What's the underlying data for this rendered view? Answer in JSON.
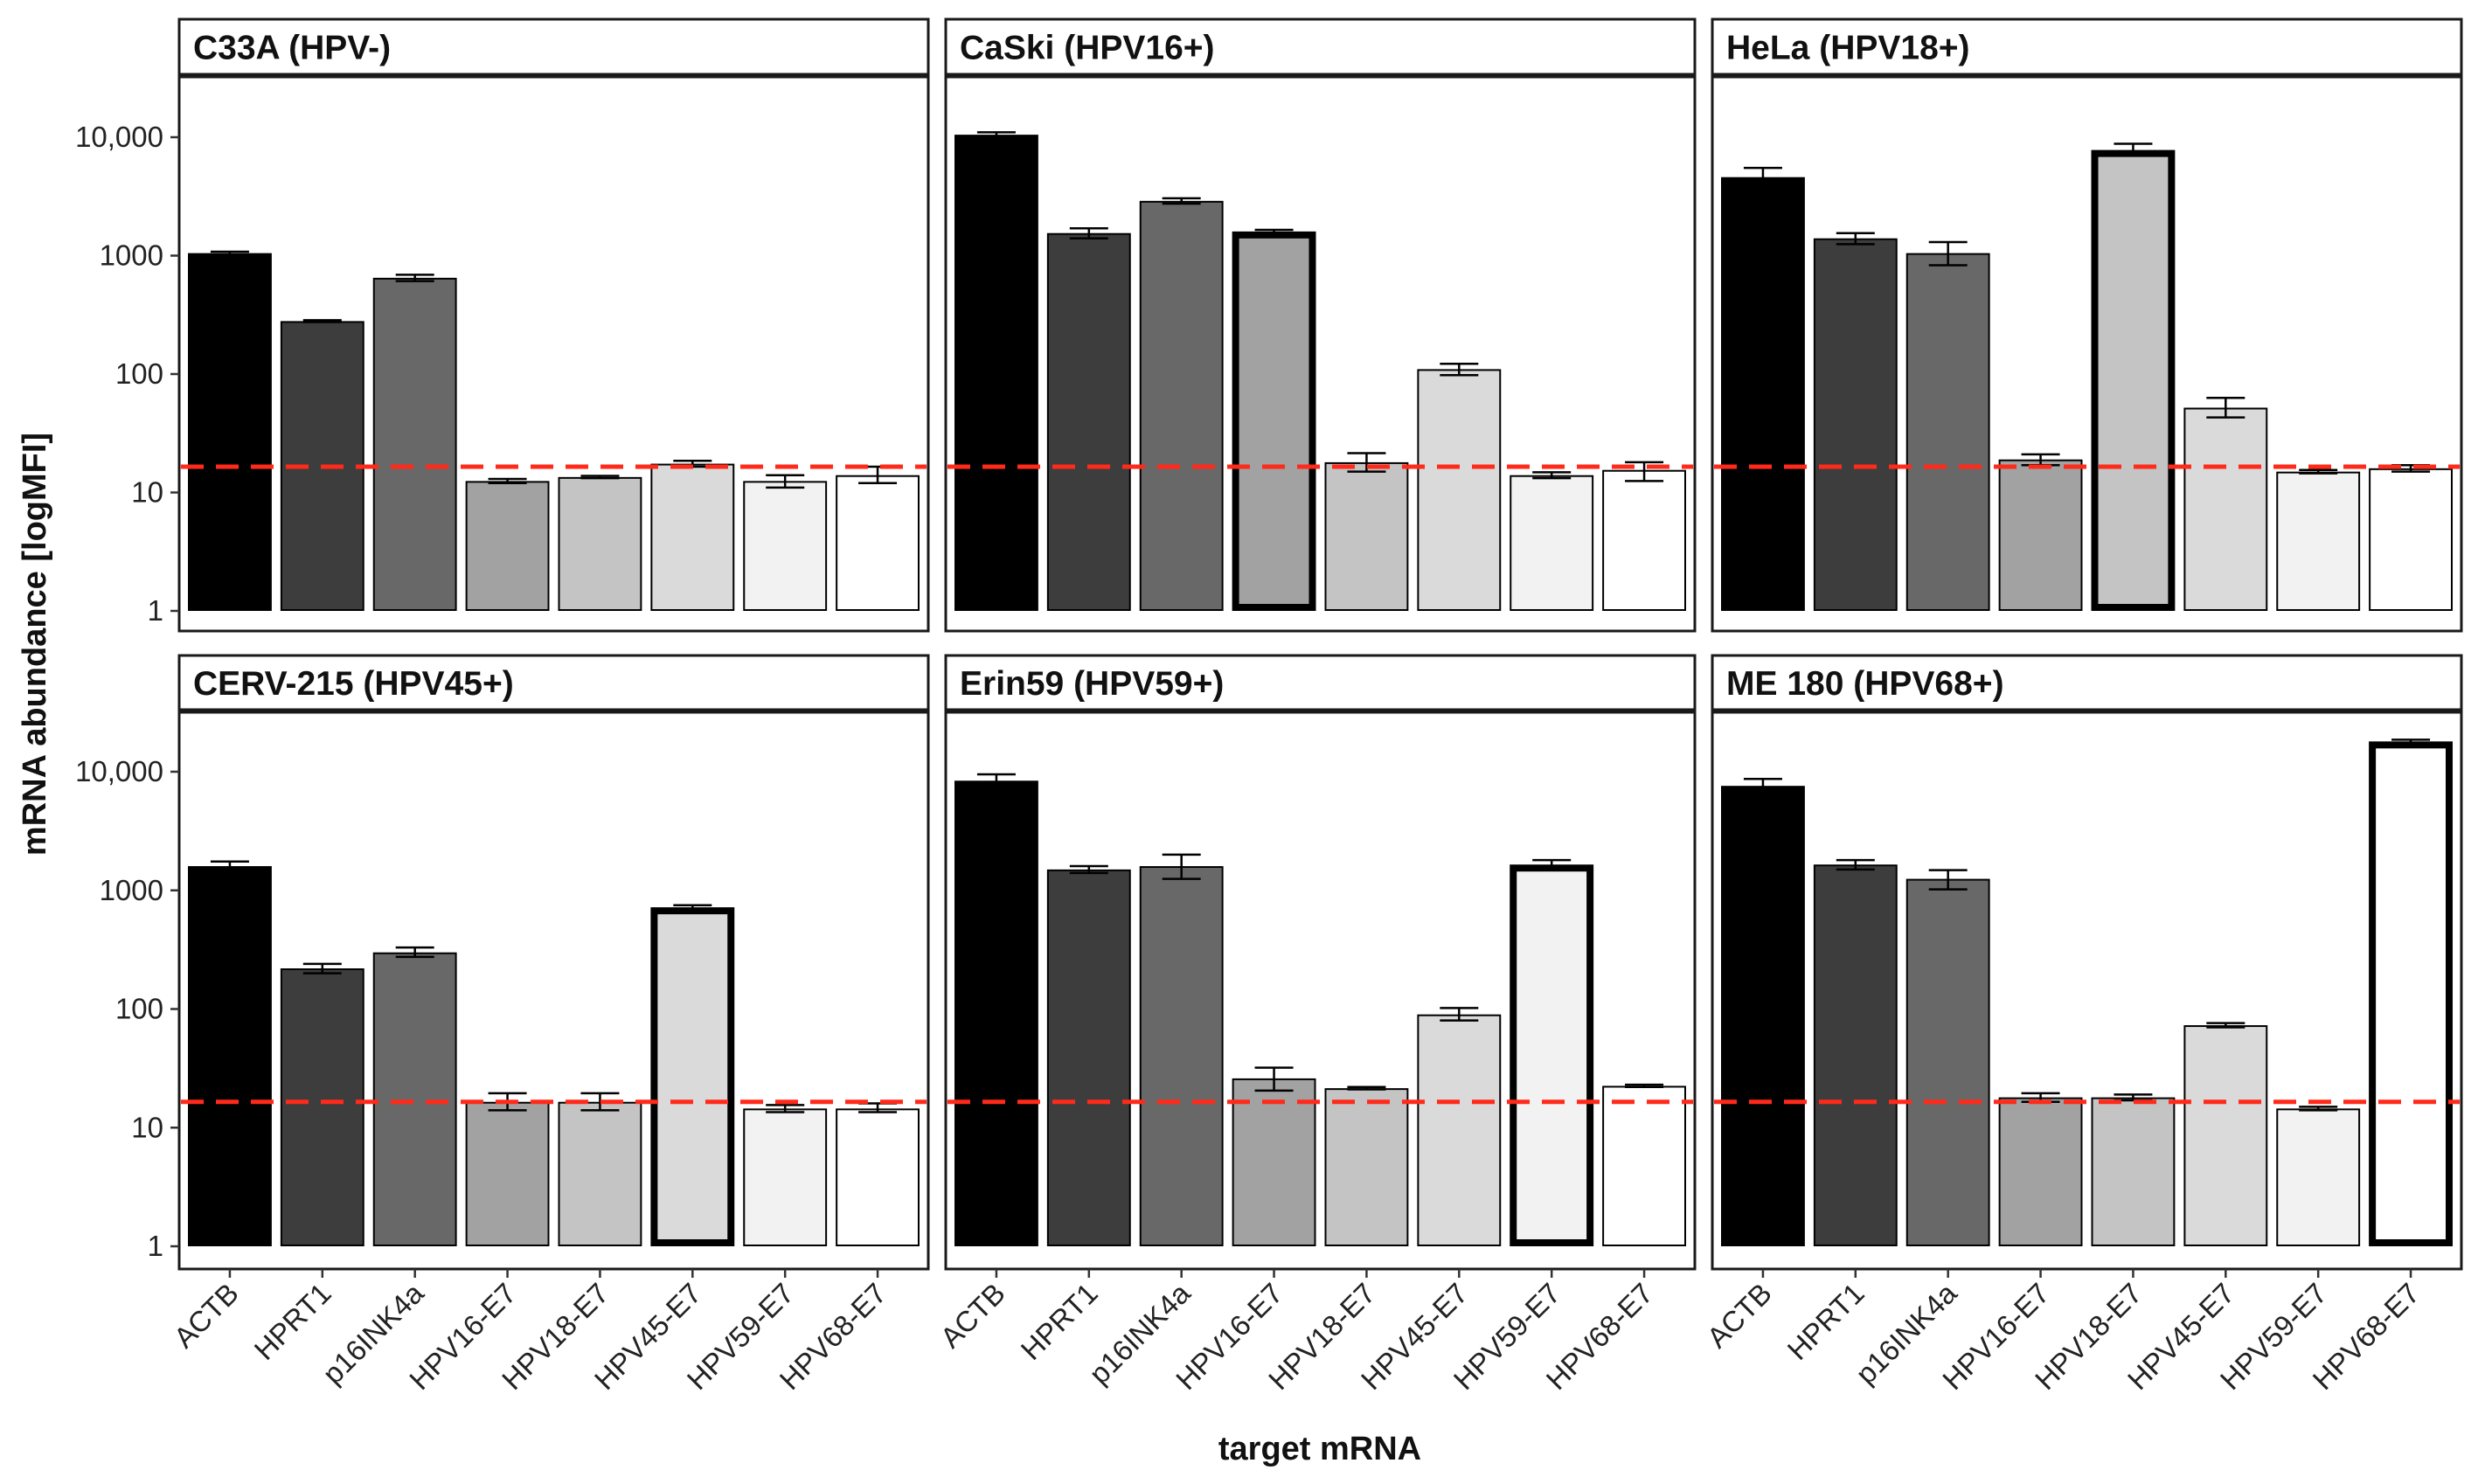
{
  "chart_data": {
    "type": "bar",
    "layout": "facet-grid 2x3",
    "xlabel": "target mRNA",
    "ylabel": "mRNA abundance [logMFI]",
    "yscale": "log10",
    "ylim": [
      1,
      30000
    ],
    "yticks": [
      1,
      10,
      100,
      1000,
      10000
    ],
    "ytick_labels": [
      "1",
      "10",
      "100",
      "1000",
      "10,000"
    ],
    "grid": false,
    "categories": [
      "ACTB",
      "HPRT1",
      "p16INK4a",
      "HPV16-E7",
      "HPV18-E7",
      "HPV45-E7",
      "HPV59-E7",
      "HPV68-E7"
    ],
    "bar_colors": [
      "#000000",
      "#3d3d3d",
      "#686868",
      "#a2a2a2",
      "#c4c4c4",
      "#dadada",
      "#f2f2f2",
      "#ffffff"
    ],
    "threshold": {
      "value": 16.5,
      "color": "#ff2a1a",
      "style": "dashed"
    },
    "panels": [
      {
        "title": "C33A (HPV-)",
        "values": [
          1050,
          280,
          650,
          12.5,
          13.5,
          17.5,
          12.5,
          14
        ],
        "error": [
          [
            1020,
            1080
          ],
          [
            275,
            285
          ],
          [
            610,
            690
          ],
          [
            12,
            13
          ],
          [
            13.2,
            13.8
          ],
          [
            16.5,
            18.5
          ],
          [
            11,
            14
          ],
          [
            12,
            16.5
          ]
        ],
        "highlight": null
      },
      {
        "title": "CaSki (HPV16+)",
        "values": [
          10500,
          1550,
          2900,
          1600,
          18,
          110,
          14,
          15.5
        ],
        "error": [
          [
            10000,
            11000
          ],
          [
            1400,
            1700
          ],
          [
            2750,
            3050
          ],
          [
            1550,
            1650
          ],
          [
            15,
            21.5
          ],
          [
            98,
            122
          ],
          [
            13.2,
            14.8
          ],
          [
            12.5,
            18
          ]
        ],
        "highlight": 3
      },
      {
        "title": "HeLa (HPV18+)",
        "values": [
          4600,
          1400,
          1050,
          19,
          7800,
          52,
          15,
          16
        ],
        "error": [
          [
            3800,
            5500
          ],
          [
            1250,
            1550
          ],
          [
            830,
            1300
          ],
          [
            17,
            21
          ],
          [
            7000,
            8800
          ],
          [
            43,
            63
          ],
          [
            14.5,
            15.5
          ],
          [
            15,
            17
          ]
        ],
        "highlight": 4
      },
      {
        "title": "CERV-215 (HPV45+)",
        "values": [
          1600,
          220,
          300,
          16.5,
          16.5,
          720,
          14.5,
          14.5
        ],
        "error": [
          [
            1480,
            1750
          ],
          [
            200,
            240
          ],
          [
            275,
            330
          ],
          [
            14,
            19.5
          ],
          [
            14,
            19.5
          ],
          [
            690,
            750
          ],
          [
            13.5,
            15.5
          ],
          [
            13.5,
            16
          ]
        ],
        "highlight": 5
      },
      {
        "title": "Erin59 (HPV59+)",
        "values": [
          8400,
          1500,
          1600,
          26,
          21.5,
          90,
          1650,
          22.5
        ],
        "error": [
          [
            7400,
            9500
          ],
          [
            1400,
            1600
          ],
          [
            1250,
            2000
          ],
          [
            20.5,
            32
          ],
          [
            21,
            22
          ],
          [
            80,
            102
          ],
          [
            1520,
            1800
          ],
          [
            22,
            23
          ]
        ],
        "highlight": 6
      },
      {
        "title": "ME 180 (HPV68+)",
        "values": [
          7600,
          1650,
          1250,
          18,
          18,
          73,
          14.5,
          18000
        ],
        "error": [
          [
            6900,
            8700
          ],
          [
            1500,
            1800
          ],
          [
            1020,
            1480
          ],
          [
            16.5,
            19.5
          ],
          [
            17,
            19
          ],
          [
            70,
            76
          ],
          [
            14,
            15
          ],
          [
            17400,
            18600
          ]
        ],
        "highlight": 7
      }
    ]
  }
}
